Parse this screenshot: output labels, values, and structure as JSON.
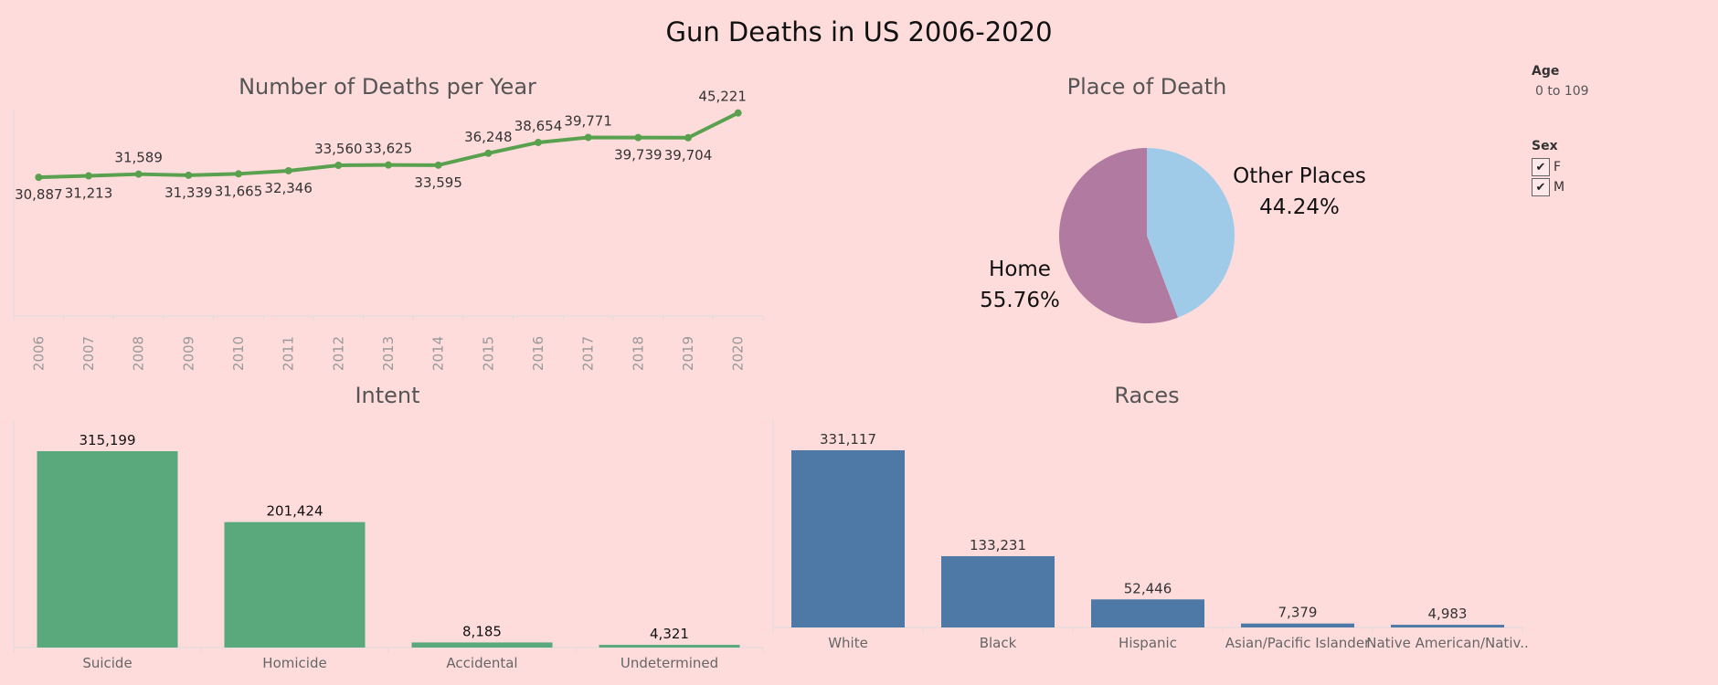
{
  "page_title": "Gun Deaths in US 2006-2020",
  "filters": {
    "age": {
      "title": "Age",
      "value": "0 to 109"
    },
    "sex": {
      "title": "Sex",
      "options": [
        {
          "label": "F",
          "checked": true
        },
        {
          "label": "M",
          "checked": true
        }
      ],
      "check_icon": "checkmark-icon"
    }
  },
  "chart_data": [
    {
      "type": "line",
      "title": "Number of Deaths per Year",
      "x": [
        "2006",
        "2007",
        "2008",
        "2009",
        "2010",
        "2011",
        "2012",
        "2013",
        "2014",
        "2015",
        "2016",
        "2017",
        "2018",
        "2019",
        "2020"
      ],
      "values": [
        30887,
        31213,
        31589,
        31339,
        31665,
        32346,
        33560,
        33625,
        33595,
        36248,
        38654,
        39771,
        39739,
        39704,
        45221
      ],
      "value_labels": [
        "30,887",
        "31,213",
        "31,589",
        "31,339",
        "31,665",
        "32,346",
        "33,560",
        "33,625",
        "33,595",
        "36,248",
        "38,654",
        "39,771",
        "39,739",
        "39,704",
        "45,221"
      ],
      "label_positions": [
        "below",
        "below",
        "above",
        "below",
        "below",
        "below",
        "above",
        "above",
        "below",
        "above",
        "above",
        "above",
        "below",
        "below",
        "above"
      ],
      "ylim": [
        0,
        48000
      ],
      "grid": false,
      "color": "#59a14f"
    },
    {
      "type": "pie",
      "title": "Place of Death",
      "slices": [
        {
          "label": "Other Places",
          "value": 44.24,
          "pct_label": "44.24%",
          "color": "#a0cbe8"
        },
        {
          "label": "Home",
          "value": 55.76,
          "pct_label": "55.76%",
          "color": "#b07aa1"
        }
      ]
    },
    {
      "type": "bar",
      "title": "Intent",
      "categories": [
        "Suicide",
        "Homicide",
        "Accidental",
        "Undetermined"
      ],
      "values": [
        315199,
        201424,
        8185,
        4321
      ],
      "value_labels": [
        "315,199",
        "201,424",
        "8,185",
        "4,321"
      ],
      "ylim": [
        0,
        315199
      ],
      "color": "#59a97c"
    },
    {
      "type": "bar",
      "title": "Races",
      "categories": [
        "White",
        "Black",
        "Hispanic",
        "Asian/Pacific Islander",
        "Native American/Nativ.."
      ],
      "values": [
        331117,
        133231,
        52446,
        7379,
        4983
      ],
      "value_labels": [
        "331,117",
        "133,231",
        "52,446",
        "7,379",
        "4,983"
      ],
      "ylim": [
        0,
        331117
      ],
      "color": "#4e79a7"
    }
  ]
}
